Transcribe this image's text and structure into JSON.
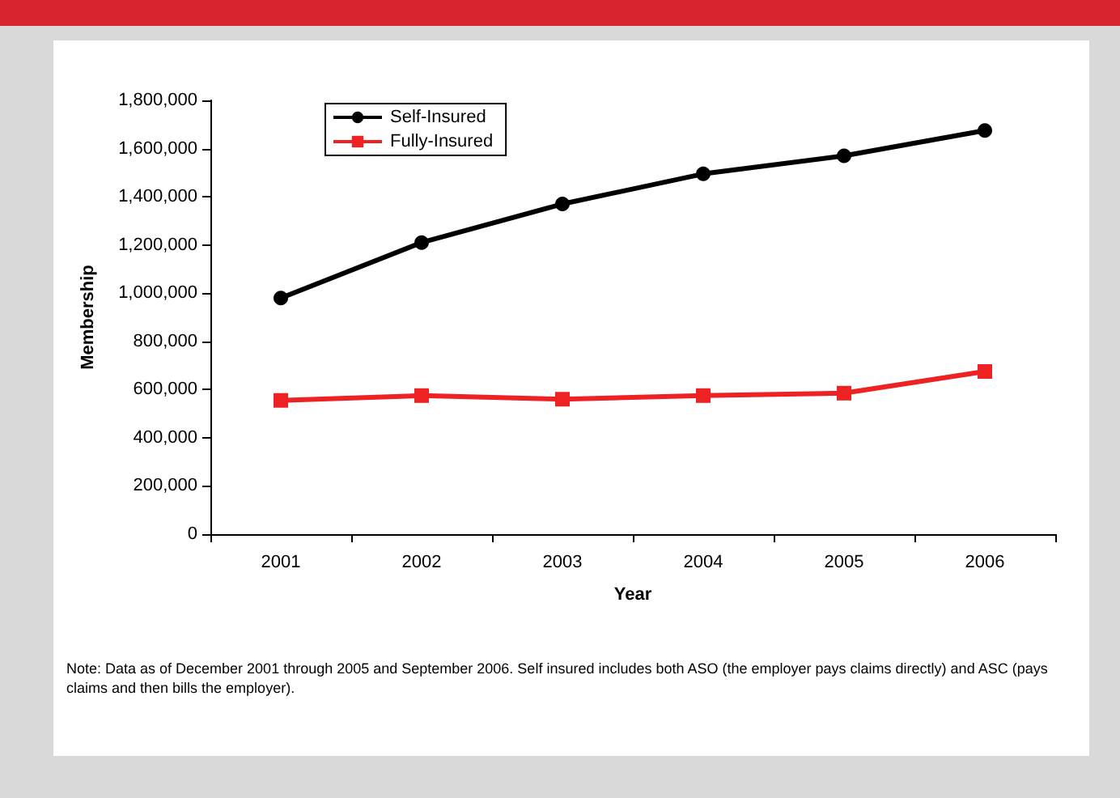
{
  "chart_data": {
    "type": "line",
    "xlabel": "Year",
    "ylabel": "Membership",
    "categories": [
      "2001",
      "2002",
      "2003",
      "2004",
      "2005",
      "2006"
    ],
    "series": [
      {
        "name": "Self-Insured",
        "color": "#000000",
        "marker": "circle",
        "values": [
          980000,
          1210000,
          1370000,
          1495000,
          1570000,
          1675000
        ]
      },
      {
        "name": "Fully-Insured",
        "color": "#ee2222",
        "marker": "square",
        "values": [
          555000,
          575000,
          560000,
          575000,
          585000,
          675000
        ]
      }
    ],
    "ylim": [
      0,
      1800000
    ],
    "yticks": [
      0,
      {
        "value": 200000,
        "label": "200,000"
      },
      {
        "value": 400000,
        "label": "400,000"
      },
      {
        "value": 600000,
        "label": "600,000"
      },
      {
        "value": 800000,
        "label": "800,000"
      },
      {
        "value": 1000000,
        "label": "1,000,000"
      },
      {
        "value": 1200000,
        "label": "1,200,000"
      },
      {
        "value": 1400000,
        "label": "1,400,000"
      },
      {
        "value": 1600000,
        "label": "1,600,000"
      },
      {
        "value": 1800000,
        "label": "1,800,000"
      }
    ],
    "grid": false,
    "legend": "top left",
    "line_style": "solid",
    "annotations": [
      "Note: Data as of December 2001 through 2005 and September 2006.  Self insured includes both ASO (the employer pays claims directly) and ASC (pays claims and then bills the employer)."
    ]
  }
}
